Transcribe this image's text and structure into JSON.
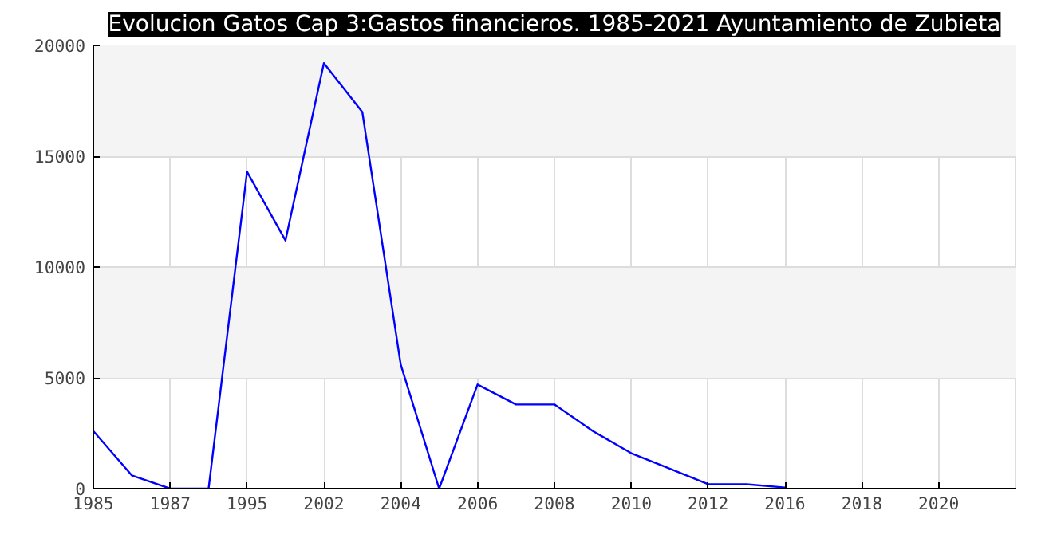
{
  "chart_data": {
    "type": "line",
    "title": "Evolucion Gatos Cap 3:Gastos financieros. 1985-2021 Ayuntamiento de Zubieta",
    "categories": [
      "1985",
      null,
      "1987",
      null,
      "1995",
      null,
      "2002",
      null,
      "2004",
      null,
      "2006",
      null,
      "2008",
      null,
      "2010",
      null,
      "2012",
      null,
      "2016",
      null,
      "2018",
      null,
      "2020",
      null
    ],
    "series": [
      {
        "color": "#0000ff",
        "values": [
          2600,
          600,
          0,
          0,
          14300,
          11200,
          19200,
          17000,
          5600,
          0,
          4700,
          3800,
          3800,
          2600,
          1600,
          900,
          200,
          200,
          50,
          null,
          null,
          null,
          null,
          null
        ]
      }
    ],
    "ylim": [
      0,
      20000
    ],
    "yticks": [
      0,
      5000,
      10000,
      15000,
      20000
    ],
    "grid": true,
    "marker": "none",
    "line_style": "solid"
  }
}
